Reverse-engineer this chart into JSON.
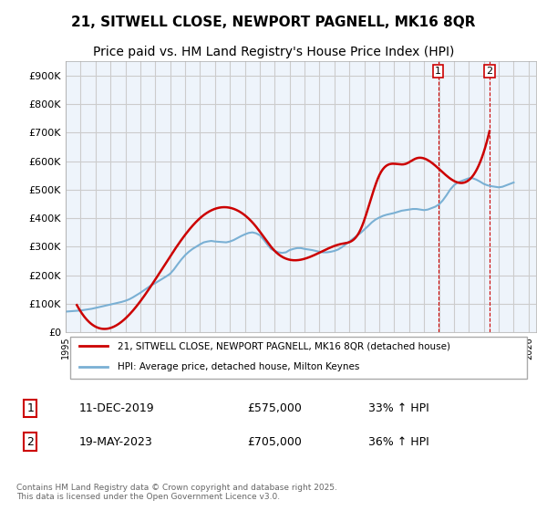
{
  "title": "21, SITWELL CLOSE, NEWPORT PAGNELL, MK16 8QR",
  "subtitle": "Price paid vs. HM Land Registry's House Price Index (HPI)",
  "title_fontsize": 11,
  "subtitle_fontsize": 10,
  "background_color": "#ffffff",
  "grid_color": "#cccccc",
  "plot_bg_color": "#eef4fb",
  "legend_label_house": "21, SITWELL CLOSE, NEWPORT PAGNELL, MK16 8QR (detached house)",
  "legend_label_hpi": "HPI: Average price, detached house, Milton Keynes",
  "house_color": "#cc0000",
  "hpi_color": "#7ab0d4",
  "marker1_date_str": "1",
  "marker2_date_str": "2",
  "annotation1_label": "1",
  "annotation2_label": "2",
  "annotation1_row": "11-DEC-2019",
  "annotation1_price": "£575,000",
  "annotation1_pct": "33% ↑ HPI",
  "annotation2_row": "19-MAY-2023",
  "annotation2_price": "£705,000",
  "annotation2_pct": "36% ↑ HPI",
  "footer": "Contains HM Land Registry data © Crown copyright and database right 2025.\nThis data is licensed under the Open Government Licence v3.0.",
  "ylim_min": 0,
  "ylim_max": 950000,
  "yticks": [
    0,
    100000,
    200000,
    300000,
    400000,
    500000,
    600000,
    700000,
    800000,
    900000
  ],
  "ytick_labels": [
    "£0",
    "£100K",
    "£200K",
    "£300K",
    "£400K",
    "£500K",
    "£600K",
    "£700K",
    "£800K",
    "£900K"
  ],
  "xmin": 1995.0,
  "xmax": 2026.5,
  "marker1_x": 2019.95,
  "marker2_x": 2023.38,
  "hpi_years": [
    1995.0,
    1995.25,
    1995.5,
    1995.75,
    1996.0,
    1996.25,
    1996.5,
    1996.75,
    1997.0,
    1997.25,
    1997.5,
    1997.75,
    1998.0,
    1998.25,
    1998.5,
    1998.75,
    1999.0,
    1999.25,
    1999.5,
    1999.75,
    2000.0,
    2000.25,
    2000.5,
    2000.75,
    2001.0,
    2001.25,
    2001.5,
    2001.75,
    2002.0,
    2002.25,
    2002.5,
    2002.75,
    2003.0,
    2003.25,
    2003.5,
    2003.75,
    2004.0,
    2004.25,
    2004.5,
    2004.75,
    2005.0,
    2005.25,
    2005.5,
    2005.75,
    2006.0,
    2006.25,
    2006.5,
    2006.75,
    2007.0,
    2007.25,
    2007.5,
    2007.75,
    2008.0,
    2008.25,
    2008.5,
    2008.75,
    2009.0,
    2009.25,
    2009.5,
    2009.75,
    2010.0,
    2010.25,
    2010.5,
    2010.75,
    2011.0,
    2011.25,
    2011.5,
    2011.75,
    2012.0,
    2012.25,
    2012.5,
    2012.75,
    2013.0,
    2013.25,
    2013.5,
    2013.75,
    2014.0,
    2014.25,
    2014.5,
    2014.75,
    2015.0,
    2015.25,
    2015.5,
    2015.75,
    2016.0,
    2016.25,
    2016.5,
    2016.75,
    2017.0,
    2017.25,
    2017.5,
    2017.75,
    2018.0,
    2018.25,
    2018.5,
    2018.75,
    2019.0,
    2019.25,
    2019.5,
    2019.75,
    2020.0,
    2020.25,
    2020.5,
    2020.75,
    2021.0,
    2021.25,
    2021.5,
    2021.75,
    2022.0,
    2022.25,
    2022.5,
    2022.75,
    2023.0,
    2023.25,
    2023.5,
    2023.75,
    2024.0,
    2024.25,
    2024.5,
    2024.75,
    2025.0
  ],
  "hpi_values": [
    72000,
    73000,
    74000,
    75000,
    76000,
    78000,
    80000,
    82000,
    85000,
    88000,
    91000,
    94000,
    97000,
    100000,
    103000,
    106000,
    110000,
    115000,
    122000,
    130000,
    138000,
    147000,
    156000,
    165000,
    172000,
    180000,
    188000,
    196000,
    205000,
    220000,
    238000,
    255000,
    270000,
    282000,
    292000,
    300000,
    308000,
    315000,
    318000,
    320000,
    318000,
    317000,
    316000,
    315000,
    318000,
    323000,
    330000,
    337000,
    343000,
    348000,
    350000,
    347000,
    340000,
    325000,
    308000,
    292000,
    285000,
    280000,
    278000,
    280000,
    288000,
    292000,
    295000,
    295000,
    292000,
    290000,
    288000,
    285000,
    282000,
    280000,
    280000,
    282000,
    285000,
    290000,
    298000,
    308000,
    318000,
    328000,
    338000,
    348000,
    360000,
    372000,
    385000,
    395000,
    402000,
    408000,
    412000,
    415000,
    418000,
    422000,
    426000,
    428000,
    430000,
    432000,
    432000,
    430000,
    428000,
    430000,
    435000,
    440000,
    448000,
    462000,
    480000,
    500000,
    515000,
    525000,
    530000,
    535000,
    540000,
    540000,
    535000,
    528000,
    520000,
    515000,
    512000,
    510000,
    508000,
    510000,
    515000,
    520000,
    525000
  ],
  "house_years": [
    1995.75,
    2000.5,
    2004.0,
    2007.75,
    2009.0,
    2013.5,
    2014.75,
    2016.0,
    2016.75,
    2017.75,
    2018.5,
    2019.95,
    2023.38
  ],
  "house_values": [
    95000,
    145000,
    400000,
    370000,
    285000,
    310000,
    360000,
    550000,
    590000,
    590000,
    610000,
    575000,
    705000
  ]
}
